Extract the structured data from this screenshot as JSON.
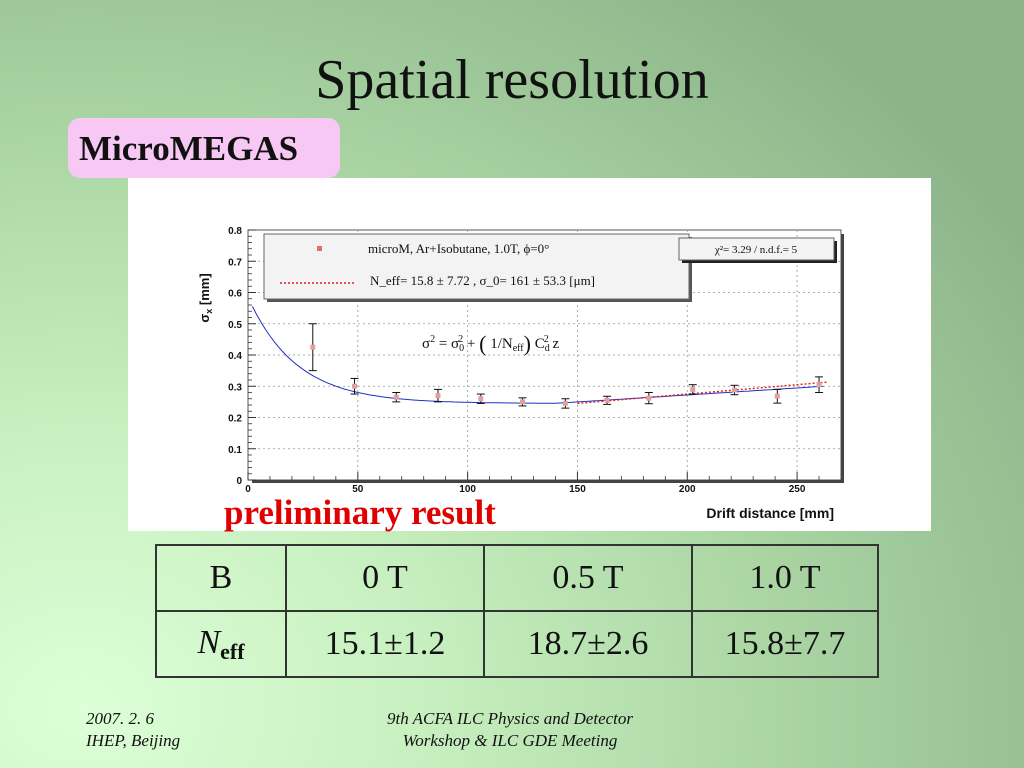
{
  "slide": {
    "title": "Spatial resolution",
    "tag": "MicroMEGAS",
    "preliminary": "preliminary result"
  },
  "chart_data": {
    "type": "scatter",
    "xlabel": "Drift distance [mm]",
    "ylabel": "σ_x [mm]",
    "xlim": [
      0,
      270
    ],
    "ylim": [
      0,
      0.8
    ],
    "xticks": [
      "0",
      "50",
      "100",
      "150",
      "200",
      "250"
    ],
    "yticks": [
      "0",
      "0.1",
      "0.2",
      "0.3",
      "0.4",
      "0.5",
      "0.6",
      "0.7",
      "0.8"
    ],
    "grid": true,
    "legend_position": "top",
    "legend": {
      "series_label": "microM, Ar+Isobutane, 1.0T, ϕ=0°",
      "fit_label": "N_eff= 15.8 ± 7.72 , σ_0= 161 ± 53.3 [μm]"
    },
    "fit_stats": "χ²= 3.29 / n.d.f.= 5",
    "formula": "σ² = σ₀² + (1/N_eff) C_d² z",
    "series": [
      {
        "name": "microM, Ar+Isobutane, 1.0T, ϕ=0°",
        "x": [
          29.5,
          48.5,
          67.5,
          86.5,
          106,
          125,
          144.5,
          163.5,
          182.5,
          202.5,
          221.5,
          241,
          260
        ],
        "y": [
          0.425,
          0.3,
          0.265,
          0.27,
          0.26,
          0.25,
          0.245,
          0.255,
          0.262,
          0.29,
          0.288,
          0.268,
          0.305
        ],
        "yerr": [
          0.075,
          0.025,
          0.015,
          0.02,
          0.015,
          0.013,
          0.015,
          0.013,
          0.018,
          0.015,
          0.015,
          0.022,
          0.025
        ],
        "color": "#e0a0a0"
      }
    ],
    "fit_curve_color": "#2030c0",
    "dotted_line_color": "#e02020"
  },
  "table": {
    "header": [
      "B",
      "0 T",
      "0.5 T",
      "1.0 T"
    ],
    "row_label_main": "N",
    "row_label_sub": "eff",
    "row": [
      "15.1±1.2",
      "18.7±2.6",
      "15.8±7.7"
    ]
  },
  "footer": {
    "left_line1": "2007. 2. 6",
    "left_line2": "IHEP, Beijing",
    "center_line1": "9th ACFA ILC Physics and Detector",
    "center_line2": "Workshop & ILC GDE Meeting"
  }
}
